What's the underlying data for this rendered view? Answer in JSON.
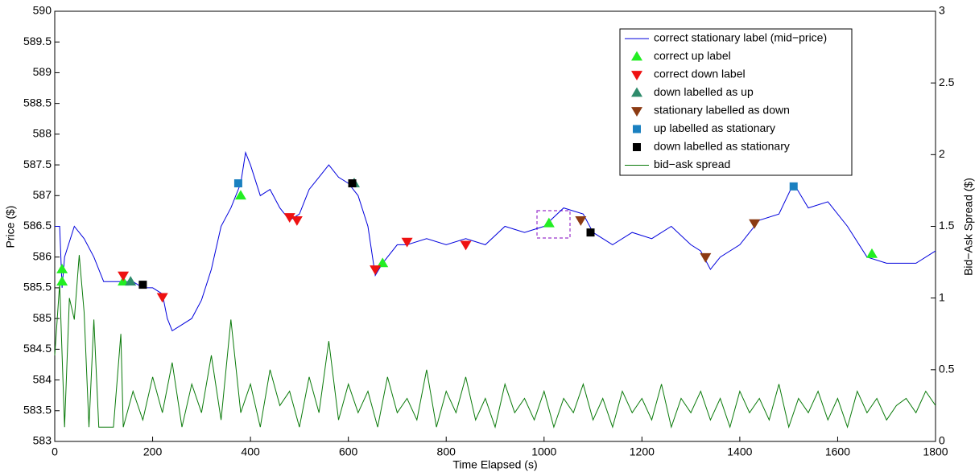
{
  "chart_data": {
    "type": "line",
    "xlabel": "Time Elapsed (s)",
    "ylabel": "Price ($)",
    "y2label": "Bid−Ask Spread ($)",
    "xlim": [
      0,
      1800
    ],
    "xticks": [
      0,
      200,
      400,
      600,
      800,
      1000,
      1200,
      1400,
      1600,
      1800
    ],
    "ylim": [
      583,
      590
    ],
    "yticks": [
      583,
      583.5,
      584,
      584.5,
      585,
      585.5,
      586,
      586.5,
      587,
      587.5,
      588,
      588.5,
      589,
      589.5,
      590
    ],
    "y2lim": [
      0,
      3
    ],
    "y2ticks": [
      0,
      0.5,
      1,
      1.5,
      2,
      2.5,
      3
    ],
    "legend": "top-right",
    "series": [
      {
        "name": "correct stationary label (mid−price)",
        "color": "#0000dd",
        "marker": "line",
        "x": [
          0,
          10,
          15,
          20,
          40,
          60,
          80,
          100,
          140,
          160,
          180,
          200,
          220,
          230,
          240,
          260,
          280,
          300,
          320,
          340,
          360,
          380,
          390,
          400,
          420,
          440,
          460,
          480,
          500,
          520,
          540,
          560,
          580,
          600,
          620,
          640,
          655,
          670,
          700,
          720,
          760,
          800,
          840,
          880,
          920,
          960,
          1000,
          1040,
          1080,
          1100,
          1140,
          1180,
          1220,
          1260,
          1300,
          1320,
          1340,
          1360,
          1400,
          1420,
          1440,
          1480,
          1510,
          1540,
          1580,
          1620,
          1660,
          1700,
          1760,
          1800
        ],
        "values": [
          586.5,
          586.5,
          585.5,
          586.0,
          586.5,
          586.3,
          586.0,
          585.6,
          585.6,
          585.6,
          585.5,
          585.5,
          585.4,
          585.0,
          584.8,
          584.9,
          585.0,
          585.3,
          585.8,
          586.5,
          586.8,
          587.2,
          587.7,
          587.5,
          587.0,
          587.1,
          586.8,
          586.6,
          586.7,
          587.1,
          587.3,
          587.5,
          587.3,
          587.2,
          587.0,
          586.5,
          585.7,
          585.9,
          586.2,
          586.2,
          586.3,
          586.2,
          586.3,
          586.2,
          586.5,
          586.4,
          586.5,
          586.8,
          586.7,
          586.4,
          586.2,
          586.4,
          586.3,
          586.5,
          586.2,
          586.1,
          585.8,
          586.0,
          586.2,
          586.4,
          586.6,
          586.7,
          587.2,
          586.8,
          586.9,
          586.5,
          586.0,
          585.9,
          585.9,
          586.1
        ]
      },
      {
        "name": "correct up label",
        "color": "#22ee22",
        "marker": "triangle-up",
        "x": [
          15,
          15,
          140,
          380,
          670,
          1010,
          1670
        ],
        "values": [
          585.8,
          585.6,
          585.6,
          587.0,
          585.9,
          586.55,
          586.05
        ]
      },
      {
        "name": "correct down label",
        "color": "#ee1111",
        "marker": "triangle-down",
        "x": [
          140,
          220,
          480,
          495,
          655,
          720,
          840
        ],
        "values": [
          585.7,
          585.35,
          586.65,
          586.6,
          585.8,
          586.25,
          586.2
        ]
      },
      {
        "name": "down labelled as up",
        "color": "#2e8b6b",
        "marker": "triangle-up",
        "x": [
          155,
          612
        ],
        "values": [
          585.6,
          587.2
        ]
      },
      {
        "name": "stationary labelled as down",
        "color": "#8b3a12",
        "marker": "triangle-down",
        "x": [
          1075,
          1330,
          1430
        ],
        "values": [
          586.6,
          586.0,
          586.55
        ]
      },
      {
        "name": "up labelled as stationary",
        "color": "#1a80c0",
        "marker": "square",
        "x": [
          375,
          1510
        ],
        "values": [
          587.2,
          587.15
        ]
      },
      {
        "name": "down labelled as stationary",
        "color": "#000000",
        "marker": "square",
        "x": [
          180,
          608,
          1095
        ],
        "values": [
          585.55,
          587.2,
          586.4
        ]
      },
      {
        "name": "bid−ask spread",
        "color": "#0a7a0a",
        "marker": "line",
        "axis": "y2",
        "x": [
          0,
          10,
          20,
          30,
          40,
          50,
          60,
          70,
          80,
          90,
          100,
          120,
          135,
          140,
          160,
          180,
          200,
          220,
          240,
          260,
          280,
          300,
          320,
          340,
          360,
          380,
          400,
          420,
          440,
          460,
          480,
          500,
          520,
          540,
          560,
          580,
          600,
          620,
          640,
          660,
          680,
          700,
          720,
          740,
          760,
          780,
          800,
          820,
          840,
          860,
          880,
          900,
          920,
          940,
          960,
          980,
          1000,
          1020,
          1040,
          1060,
          1080,
          1100,
          1120,
          1140,
          1160,
          1180,
          1200,
          1220,
          1240,
          1260,
          1280,
          1300,
          1320,
          1340,
          1360,
          1380,
          1400,
          1420,
          1440,
          1460,
          1480,
          1500,
          1520,
          1540,
          1560,
          1580,
          1600,
          1620,
          1640,
          1660,
          1680,
          1700,
          1720,
          1740,
          1760,
          1780,
          1800
        ],
        "values": [
          0.6,
          1.1,
          0.1,
          1.0,
          0.85,
          1.3,
          0.9,
          0.1,
          0.85,
          0.1,
          0.1,
          0.1,
          0.75,
          0.1,
          0.35,
          0.15,
          0.45,
          0.2,
          0.55,
          0.1,
          0.4,
          0.2,
          0.6,
          0.15,
          0.85,
          0.2,
          0.4,
          0.1,
          0.5,
          0.25,
          0.35,
          0.1,
          0.45,
          0.2,
          0.7,
          0.15,
          0.4,
          0.2,
          0.35,
          0.1,
          0.45,
          0.2,
          0.3,
          0.15,
          0.5,
          0.1,
          0.35,
          0.2,
          0.45,
          0.15,
          0.3,
          0.1,
          0.4,
          0.2,
          0.3,
          0.15,
          0.35,
          0.1,
          0.3,
          0.2,
          0.4,
          0.15,
          0.3,
          0.1,
          0.35,
          0.2,
          0.3,
          0.15,
          0.4,
          0.1,
          0.3,
          0.2,
          0.35,
          0.15,
          0.3,
          0.1,
          0.35,
          0.2,
          0.3,
          0.15,
          0.4,
          0.1,
          0.3,
          0.2,
          0.35,
          0.15,
          0.3,
          0.1,
          0.35,
          0.2,
          0.3,
          0.15,
          0.25,
          0.3,
          0.2,
          0.35,
          0.25
        ]
      }
    ]
  }
}
